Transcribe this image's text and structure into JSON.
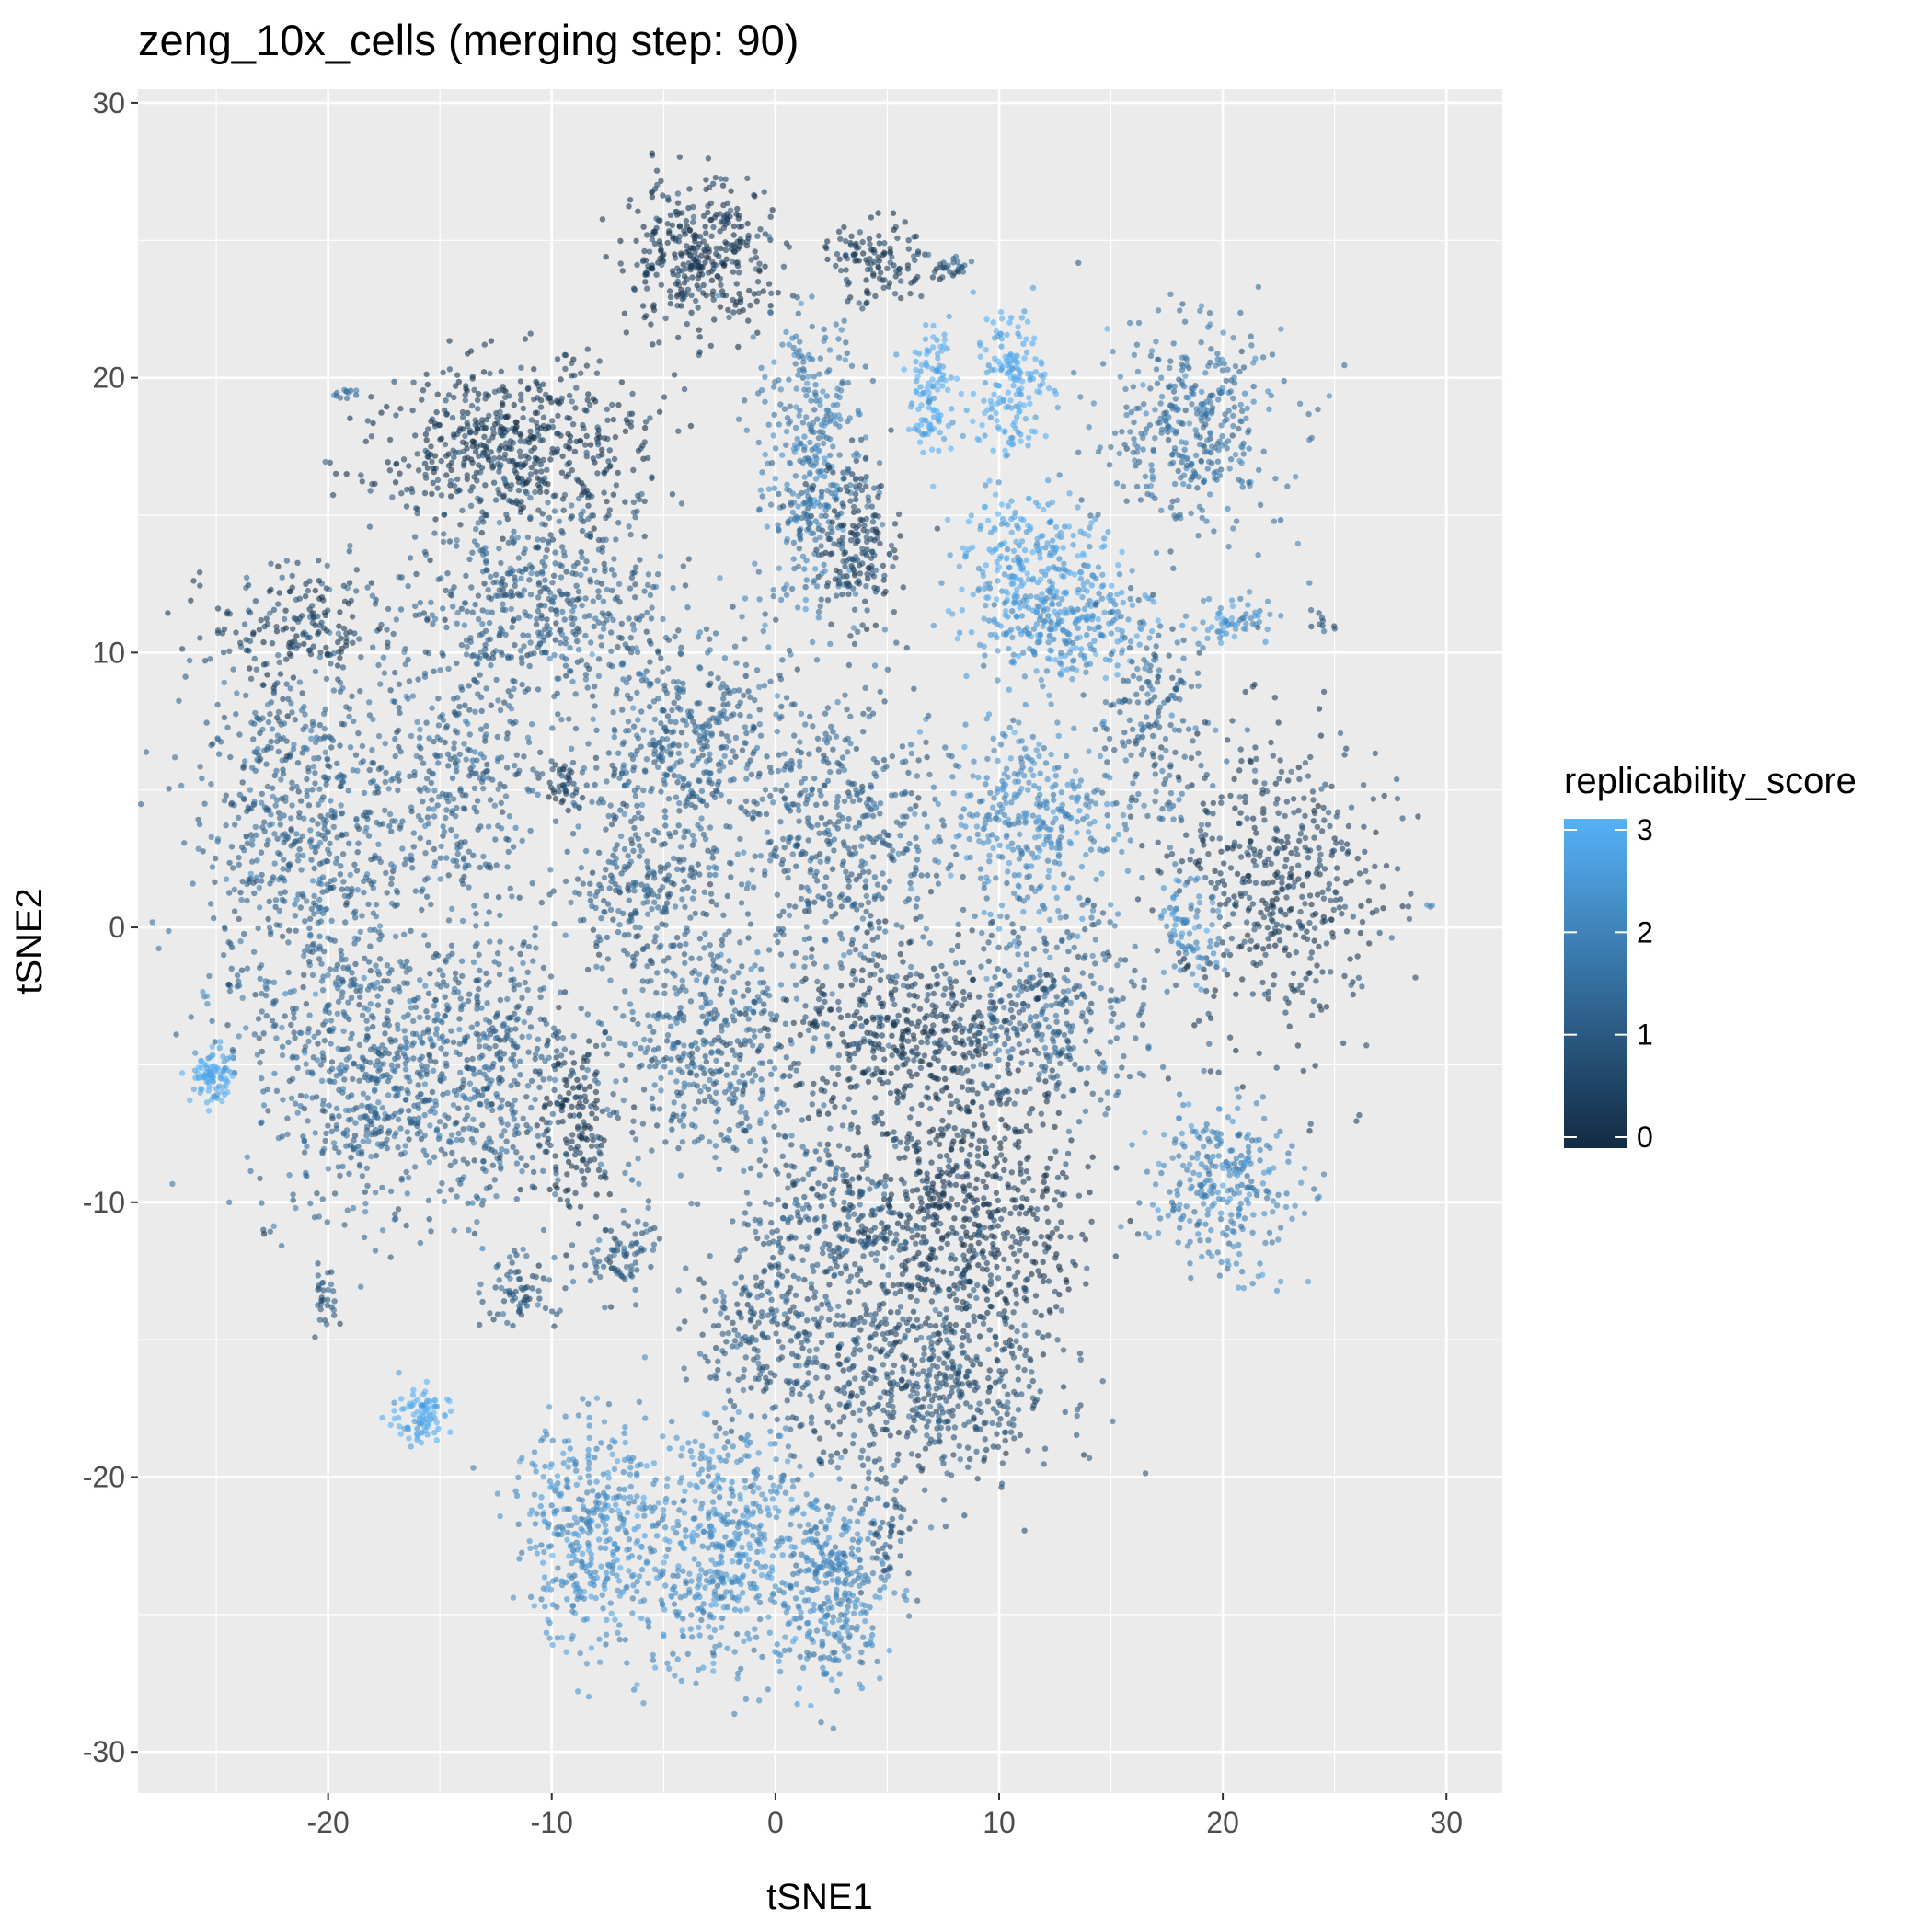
{
  "chart_data": {
    "type": "scatter",
    "title": "zeng_10x_cells (merging step: 90)",
    "xlabel": "tSNE1",
    "ylabel": "tSNE2",
    "xlim": [
      -28.5,
      32.5
    ],
    "ylim": [
      -31.5,
      30.5
    ],
    "x_ticks": [
      -20,
      -10,
      0,
      10,
      20,
      30
    ],
    "y_ticks": [
      -30,
      -20,
      -10,
      0,
      10,
      20,
      30
    ],
    "x_tick_labels": [
      "-20",
      "-10",
      "0",
      "10",
      "20",
      "30"
    ],
    "y_tick_labels": [
      "-30",
      "-20",
      "-10",
      "0",
      "10",
      "20",
      "30"
    ],
    "grid": true,
    "color_variable": "replicability_score",
    "color_scale": {
      "low": "#132B43",
      "high": "#56B1F7",
      "range": [
        0,
        3
      ],
      "ticks": [
        0,
        1,
        2,
        3
      ],
      "tick_labels": [
        "0",
        "1",
        "2",
        "3"
      ]
    },
    "legend_position": "right",
    "point_alpha": 0.6,
    "clusters": [
      {
        "cx": -3.5,
        "cy": 24.5,
        "sx": 2.2,
        "sy": 1.8,
        "score": 0.3,
        "n": 360
      },
      {
        "cx": 1.5,
        "cy": 17,
        "sx": 1.6,
        "sy": 3.8,
        "score": 1.8,
        "n": 360
      },
      {
        "cx": 3.5,
        "cy": 14,
        "sx": 1.4,
        "sy": 2.0,
        "score": 0.6,
        "n": 200
      },
      {
        "cx": 4.5,
        "cy": 24.2,
        "sx": 1.6,
        "sy": 1.0,
        "score": 0.4,
        "n": 120
      },
      {
        "cx": 7,
        "cy": 19.5,
        "sx": 0.7,
        "sy": 1.5,
        "score": 2.9,
        "n": 110
      },
      {
        "cx": 10.5,
        "cy": 19.8,
        "sx": 1.1,
        "sy": 2.0,
        "score": 2.9,
        "n": 170
      },
      {
        "cx": 18.5,
        "cy": 18.2,
        "sx": 2.8,
        "sy": 2.5,
        "score": 1.6,
        "n": 380
      },
      {
        "cx": 11.5,
        "cy": 13,
        "sx": 2.4,
        "sy": 1.8,
        "score": 2.7,
        "n": 280
      },
      {
        "cx": 12.8,
        "cy": 10.8,
        "sx": 2.6,
        "sy": 1.3,
        "score": 2.3,
        "n": 220
      },
      {
        "cx": 11.5,
        "cy": 4.0,
        "sx": 2.6,
        "sy": 2.6,
        "score": 2.1,
        "n": 360
      },
      {
        "cx": 16.8,
        "cy": 7.0,
        "sx": 1.6,
        "sy": 3.0,
        "score": 1.3,
        "n": 180
      },
      {
        "cx": 20.5,
        "cy": 11.2,
        "sx": 1.4,
        "sy": 0.6,
        "score": 2.3,
        "n": 60
      },
      {
        "cx": 22.5,
        "cy": 1.5,
        "sx": 3.0,
        "sy": 3.8,
        "score": 0.5,
        "n": 480
      },
      {
        "cx": -11.5,
        "cy": 17.5,
        "sx": 4.0,
        "sy": 2.0,
        "score": 0.4,
        "n": 560
      },
      {
        "cx": -10.5,
        "cy": 11.8,
        "sx": 4.2,
        "sy": 2.4,
        "score": 1.1,
        "n": 500
      },
      {
        "cx": -21,
        "cy": 3.5,
        "sx": 3.2,
        "sy": 5.0,
        "score": 1.2,
        "n": 720
      },
      {
        "cx": -21.5,
        "cy": 11.0,
        "sx": 2.5,
        "sy": 1.6,
        "score": 0.4,
        "n": 150
      },
      {
        "cx": -14,
        "cy": 5.5,
        "sx": 2.3,
        "sy": 3.2,
        "score": 1.2,
        "n": 300
      },
      {
        "cx": -9.5,
        "cy": 5.3,
        "sx": 0.6,
        "sy": 0.6,
        "score": 0.5,
        "n": 40
      },
      {
        "cx": -18,
        "cy": -5.5,
        "sx": 3.6,
        "sy": 3.4,
        "score": 1.3,
        "n": 620
      },
      {
        "cx": -12.5,
        "cy": -5.0,
        "sx": 2.2,
        "sy": 3.4,
        "score": 1.2,
        "n": 340
      },
      {
        "cx": -9,
        "cy": -7.0,
        "sx": 1.4,
        "sy": 2.4,
        "score": 0.3,
        "n": 160
      },
      {
        "cx": -4.0,
        "cy": 6.5,
        "sx": 3.2,
        "sy": 2.4,
        "score": 1.3,
        "n": 420
      },
      {
        "cx": 3.0,
        "cy": 3.0,
        "sx": 3.2,
        "sy": 3.6,
        "score": 1.2,
        "n": 460
      },
      {
        "cx": -6.0,
        "cy": 1.5,
        "sx": 2.4,
        "sy": 2.2,
        "score": 1.1,
        "n": 240
      },
      {
        "cx": -3.0,
        "cy": -4.5,
        "sx": 3.0,
        "sy": 3.2,
        "score": 1.3,
        "n": 440
      },
      {
        "cx": 6.0,
        "cy": -4.0,
        "sx": 3.6,
        "sy": 2.2,
        "score": 0.4,
        "n": 420
      },
      {
        "cx": 12.5,
        "cy": -3.0,
        "sx": 2.8,
        "sy": 2.4,
        "score": 1.2,
        "n": 320
      },
      {
        "cx": 8.5,
        "cy": -10.5,
        "sx": 3.6,
        "sy": 3.2,
        "score": 0.3,
        "n": 640
      },
      {
        "cx": 2.5,
        "cy": -10.5,
        "sx": 2.6,
        "sy": 2.2,
        "score": 1.0,
        "n": 260
      },
      {
        "cx": 6.5,
        "cy": -16.5,
        "sx": 4.2,
        "sy": 2.6,
        "score": 0.8,
        "n": 620
      },
      {
        "cx": -0.5,
        "cy": -14.5,
        "sx": 2.2,
        "sy": 2.0,
        "score": 1.0,
        "n": 200
      },
      {
        "cx": -2.5,
        "cy": -22.5,
        "sx": 3.0,
        "sy": 3.2,
        "score": 2.2,
        "n": 540
      },
      {
        "cx": -8.5,
        "cy": -22.0,
        "sx": 2.2,
        "sy": 2.6,
        "score": 2.2,
        "n": 360
      },
      {
        "cx": 2.5,
        "cy": -24.0,
        "sx": 1.8,
        "sy": 2.4,
        "score": 2.0,
        "n": 300
      },
      {
        "cx": -11.5,
        "cy": -13.3,
        "sx": 1.1,
        "sy": 0.9,
        "score": 1.0,
        "n": 70
      },
      {
        "cx": -7.0,
        "cy": -12.0,
        "sx": 1.2,
        "sy": 1.0,
        "score": 1.1,
        "n": 80
      },
      {
        "cx": 5.0,
        "cy": -22.0,
        "sx": 0.7,
        "sy": 1.1,
        "score": 1.0,
        "n": 50
      },
      {
        "cx": 20.0,
        "cy": -9.5,
        "sx": 2.2,
        "sy": 2.0,
        "score": 2.0,
        "n": 280
      },
      {
        "cx": 18.5,
        "cy": 0.0,
        "sx": 1.0,
        "sy": 1.3,
        "score": 2.2,
        "n": 80
      },
      {
        "cx": -25.2,
        "cy": -5.4,
        "sx": 0.6,
        "sy": 0.7,
        "score": 2.9,
        "n": 90
      },
      {
        "cx": -16.0,
        "cy": -17.8,
        "sx": 0.9,
        "sy": 0.7,
        "score": 2.9,
        "n": 90
      },
      {
        "cx": -20.2,
        "cy": -13.8,
        "sx": 0.35,
        "sy": 0.8,
        "score": 1.0,
        "n": 30
      },
      {
        "cx": -19.2,
        "cy": 19.4,
        "sx": 0.3,
        "sy": 0.15,
        "score": 1.4,
        "n": 12
      },
      {
        "cx": 8.0,
        "cy": 24.0,
        "sx": 0.6,
        "sy": 0.4,
        "score": 1.0,
        "n": 25
      },
      {
        "cx": 29.3,
        "cy": 0.8,
        "sx": 0.1,
        "sy": 0.1,
        "score": 2.0,
        "n": 3
      },
      {
        "cx": 24.5,
        "cy": 11.0,
        "sx": 0.3,
        "sy": 0.4,
        "score": 0.9,
        "n": 10
      },
      {
        "cx": -25.5,
        "cy": -2.5,
        "sx": 0.1,
        "sy": 0.2,
        "score": 2.5,
        "n": 4
      },
      {
        "cx": 26.0,
        "cy": -6.8,
        "sx": 0.1,
        "sy": 0.1,
        "score": 1.0,
        "n": 2
      },
      {
        "cx": -23.0,
        "cy": -11.0,
        "sx": 0.1,
        "sy": 0.1,
        "score": 0.5,
        "n": 2
      }
    ]
  }
}
